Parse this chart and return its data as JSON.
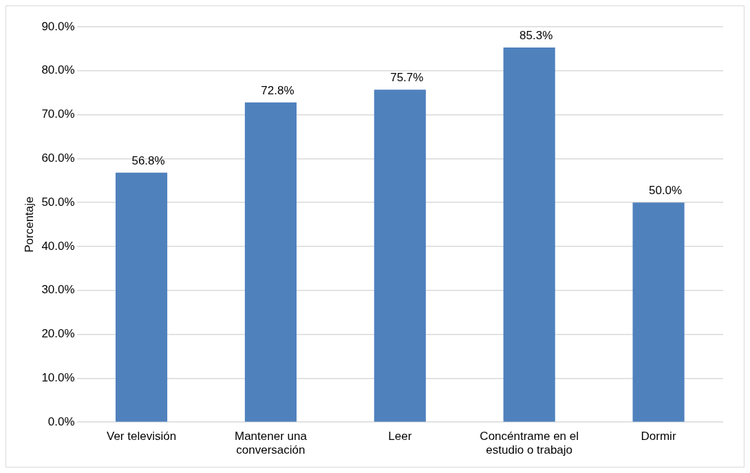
{
  "chart_data": {
    "type": "bar",
    "ylabel": "Porcentaje",
    "categories": [
      "Ver televisión",
      "Mantener una conversación",
      "Leer",
      "Concéntrame en el estudio o trabajo",
      "Dormir"
    ],
    "values": [
      56.8,
      72.8,
      75.7,
      85.3,
      50.0
    ],
    "value_labels": [
      "56.8%",
      "72.8%",
      "75.7%",
      "85.3%",
      "50.0%"
    ],
    "color": "#4f81bd",
    "ylim": [
      0,
      90
    ],
    "yticks": [
      {
        "value": 0,
        "label": "0.0%"
      },
      {
        "value": 10,
        "label": "10.0%"
      },
      {
        "value": 20,
        "label": "20.0%"
      },
      {
        "value": 30,
        "label": "30.0%"
      },
      {
        "value": 40,
        "label": "40.0%"
      },
      {
        "value": 50,
        "label": "50.0%"
      },
      {
        "value": 60,
        "label": "60.0%"
      },
      {
        "value": 70,
        "label": "70.0%"
      },
      {
        "value": 80,
        "label": "80.0%"
      },
      {
        "value": 90,
        "label": "90.0%"
      }
    ],
    "grid": "y"
  }
}
